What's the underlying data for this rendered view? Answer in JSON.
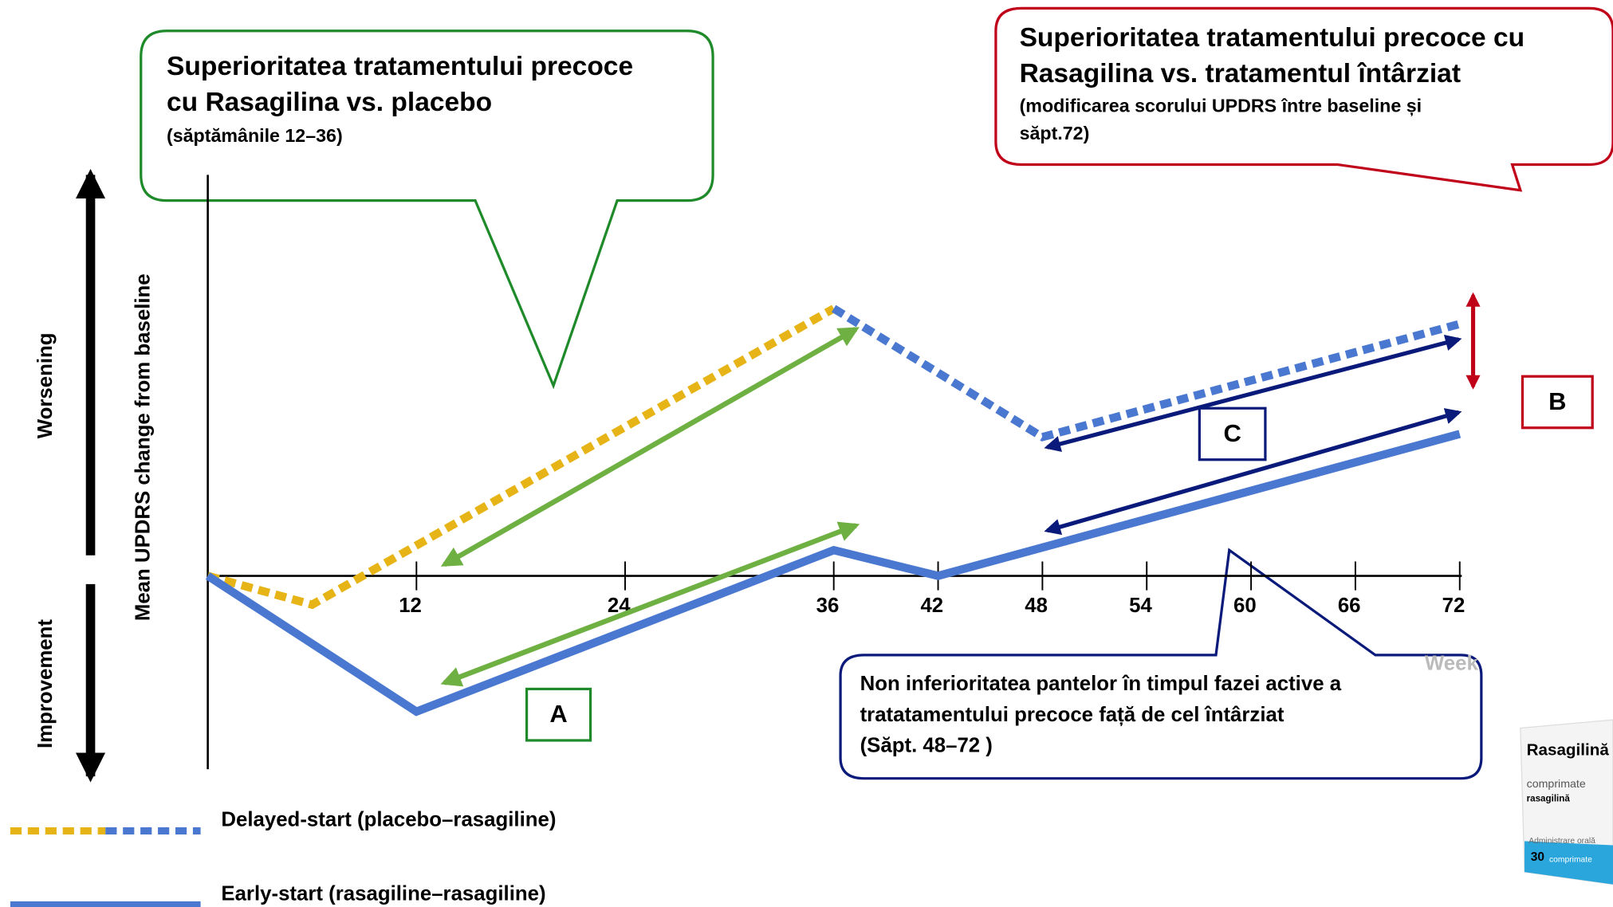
{
  "chart_data": {
    "type": "line",
    "x_label": "Week",
    "y_label": "Mean UPDRS change from baseline",
    "y_direction_labels": {
      "up": "Worsening",
      "down": "Improvement"
    },
    "xlim": [
      0,
      72
    ],
    "ylim": [
      -9.4,
      19.5
    ],
    "xticks": [
      12,
      24,
      36,
      42,
      48,
      54,
      60,
      66,
      72
    ],
    "series": [
      {
        "name": "Delayed-start (placebo–rasagiline)",
        "style": "dotted",
        "pieces": [
          {
            "color": "#e6b417",
            "x": [
              0,
              6,
              36
            ],
            "values": [
              0,
              -1.4,
              13
            ]
          },
          {
            "color": "#4a78d0",
            "x": [
              36,
              48,
              72
            ],
            "values": [
              13,
              6.75,
              12.25
            ]
          }
        ]
      },
      {
        "name": "Early-start (rasagiline–rasagiline)",
        "style": "solid",
        "color": "#4a78d0",
        "x": [
          0,
          12,
          36,
          42,
          72
        ],
        "values": [
          0,
          -6.6,
          1.25,
          0,
          6.9
        ]
      }
    ],
    "callouts": {
      "green": {
        "lines": [
          "Superioritatea tratamentului precoce",
          "cu Rasagilina vs. placebo"
        ],
        "note": "(săptămânile 12–36)"
      },
      "red": {
        "lines": [
          "Superioritatea tratamentului precoce cu",
          "Rasagilina vs. tratamentul întârziat"
        ],
        "note": [
          "(modificarea scorului UPDRS între baseline și",
          "săpt.72)"
        ]
      },
      "navy": {
        "lines": [
          "Non inferioritatea pantelor în timpul fazei active a",
          "tratatamentului precoce față de cel întârziat",
          "(Săpt. 48–72 )"
        ]
      }
    },
    "markers": {
      "A": "A",
      "B": "B",
      "C": "C"
    },
    "product": {
      "name": "Rasagilină",
      "form": "comprimate",
      "substance": "rasagilină",
      "route": "Administrare orală",
      "count": "30",
      "count_unit": "comprimate"
    }
  }
}
